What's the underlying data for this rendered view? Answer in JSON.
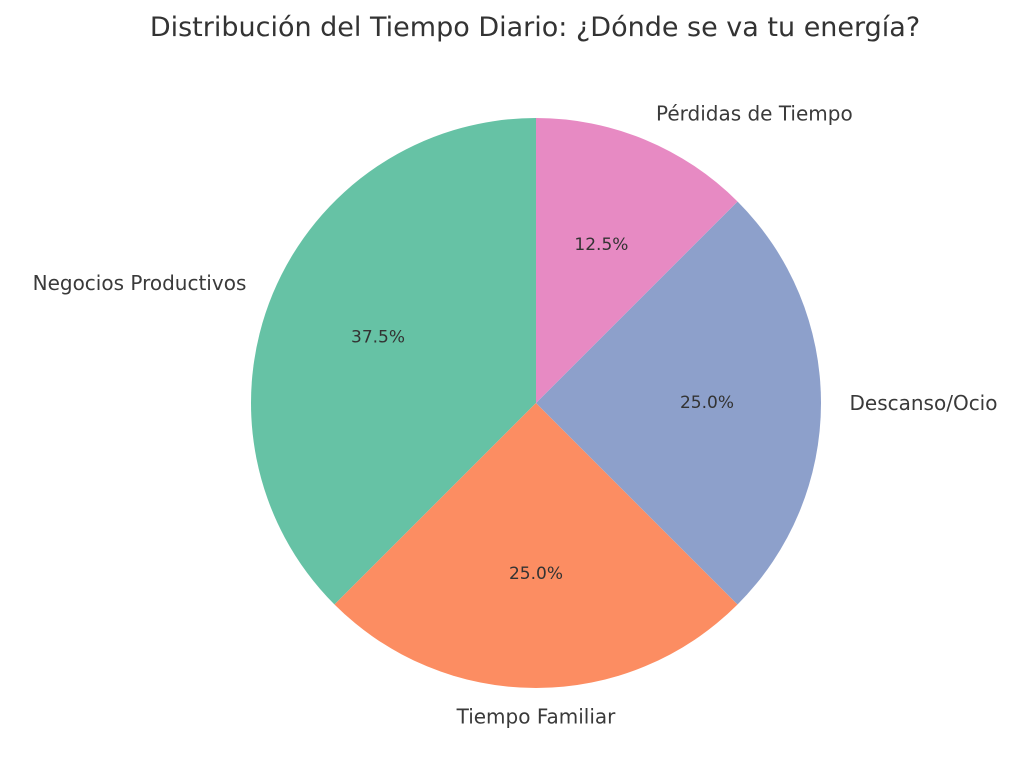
{
  "chart_data": {
    "type": "pie",
    "title": "Distribución del Tiempo Diario: ¿Dónde se va tu energía?",
    "categories": [
      "Negocios Productivos",
      "Tiempo Familiar",
      "Descanso/Ocio",
      "Pérdidas de Tiempo"
    ],
    "values": [
      37.5,
      25.0,
      25.0,
      12.5
    ],
    "percent_labels": [
      "37.5%",
      "25.0%",
      "25.0%",
      "12.5%"
    ],
    "colors": [
      "#66c2a5",
      "#fc8d62",
      "#8da0cb",
      "#e78ac3"
    ],
    "start_angle_deg": 90,
    "direction": "counterclockwise",
    "legend": "none"
  }
}
